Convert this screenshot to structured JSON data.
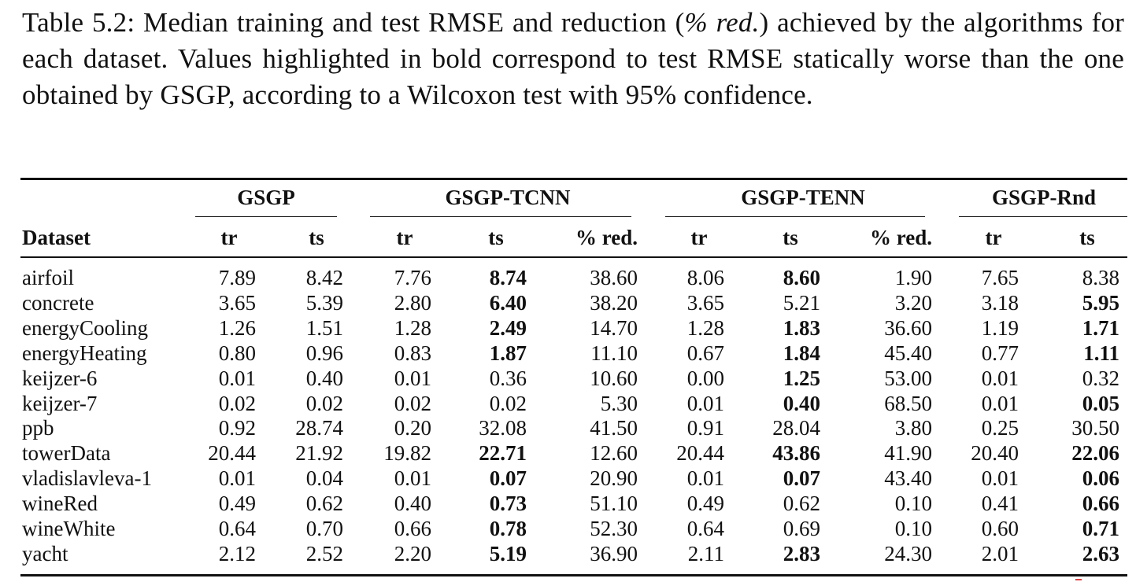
{
  "caption": {
    "label": "Table 5.2:",
    "text_before": " Median training and test RMSE and reduction (",
    "italic": "% red.",
    "text_after": ") achieved by the algorithms for each dataset. Values highlighted in bold correspond to test RMSE statically worse than the one obtained by GSGP, according to a Wilcoxon test with 95% confidence."
  },
  "table": {
    "groups": [
      "GSGP",
      "GSGP-TCNN",
      "GSGP-TENN",
      "GSGP-Rnd"
    ],
    "dataset_header": "Dataset",
    "subheaders": [
      "tr",
      "ts",
      "tr",
      "ts",
      "% red.",
      "tr",
      "ts",
      "% red.",
      "tr",
      "ts"
    ],
    "rows": [
      {
        "dataset": "airfoil",
        "cells": [
          {
            "v": "7.89",
            "b": false
          },
          {
            "v": "8.42",
            "b": false
          },
          {
            "v": "7.76",
            "b": false
          },
          {
            "v": "8.74",
            "b": true
          },
          {
            "v": "38.60",
            "b": false
          },
          {
            "v": "8.06",
            "b": false
          },
          {
            "v": "8.60",
            "b": true
          },
          {
            "v": "1.90",
            "b": false
          },
          {
            "v": "7.65",
            "b": false
          },
          {
            "v": "8.38",
            "b": false
          }
        ]
      },
      {
        "dataset": "concrete",
        "cells": [
          {
            "v": "3.65",
            "b": false
          },
          {
            "v": "5.39",
            "b": false
          },
          {
            "v": "2.80",
            "b": false
          },
          {
            "v": "6.40",
            "b": true
          },
          {
            "v": "38.20",
            "b": false
          },
          {
            "v": "3.65",
            "b": false
          },
          {
            "v": "5.21",
            "b": false
          },
          {
            "v": "3.20",
            "b": false
          },
          {
            "v": "3.18",
            "b": false
          },
          {
            "v": "5.95",
            "b": true
          }
        ]
      },
      {
        "dataset": "energyCooling",
        "cells": [
          {
            "v": "1.26",
            "b": false
          },
          {
            "v": "1.51",
            "b": false
          },
          {
            "v": "1.28",
            "b": false
          },
          {
            "v": "2.49",
            "b": true
          },
          {
            "v": "14.70",
            "b": false
          },
          {
            "v": "1.28",
            "b": false
          },
          {
            "v": "1.83",
            "b": true
          },
          {
            "v": "36.60",
            "b": false
          },
          {
            "v": "1.19",
            "b": false
          },
          {
            "v": "1.71",
            "b": true
          }
        ]
      },
      {
        "dataset": "energyHeating",
        "cells": [
          {
            "v": "0.80",
            "b": false
          },
          {
            "v": "0.96",
            "b": false
          },
          {
            "v": "0.83",
            "b": false
          },
          {
            "v": "1.87",
            "b": true
          },
          {
            "v": "11.10",
            "b": false
          },
          {
            "v": "0.67",
            "b": false
          },
          {
            "v": "1.84",
            "b": true
          },
          {
            "v": "45.40",
            "b": false
          },
          {
            "v": "0.77",
            "b": false
          },
          {
            "v": "1.11",
            "b": true
          }
        ]
      },
      {
        "dataset": "keijzer-6",
        "cells": [
          {
            "v": "0.01",
            "b": false
          },
          {
            "v": "0.40",
            "b": false
          },
          {
            "v": "0.01",
            "b": false
          },
          {
            "v": "0.36",
            "b": false
          },
          {
            "v": "10.60",
            "b": false
          },
          {
            "v": "0.00",
            "b": false
          },
          {
            "v": "1.25",
            "b": true
          },
          {
            "v": "53.00",
            "b": false
          },
          {
            "v": "0.01",
            "b": false
          },
          {
            "v": "0.32",
            "b": false
          }
        ]
      },
      {
        "dataset": "keijzer-7",
        "cells": [
          {
            "v": "0.02",
            "b": false
          },
          {
            "v": "0.02",
            "b": false
          },
          {
            "v": "0.02",
            "b": false
          },
          {
            "v": "0.02",
            "b": false
          },
          {
            "v": "5.30",
            "b": false
          },
          {
            "v": "0.01",
            "b": false
          },
          {
            "v": "0.40",
            "b": true
          },
          {
            "v": "68.50",
            "b": false
          },
          {
            "v": "0.01",
            "b": false
          },
          {
            "v": "0.05",
            "b": true
          }
        ]
      },
      {
        "dataset": "ppb",
        "cells": [
          {
            "v": "0.92",
            "b": false
          },
          {
            "v": "28.74",
            "b": false
          },
          {
            "v": "0.20",
            "b": false
          },
          {
            "v": "32.08",
            "b": false
          },
          {
            "v": "41.50",
            "b": false
          },
          {
            "v": "0.91",
            "b": false
          },
          {
            "v": "28.04",
            "b": false
          },
          {
            "v": "3.80",
            "b": false
          },
          {
            "v": "0.25",
            "b": false
          },
          {
            "v": "30.50",
            "b": false
          }
        ]
      },
      {
        "dataset": "towerData",
        "cells": [
          {
            "v": "20.44",
            "b": false
          },
          {
            "v": "21.92",
            "b": false
          },
          {
            "v": "19.82",
            "b": false
          },
          {
            "v": "22.71",
            "b": true
          },
          {
            "v": "12.60",
            "b": false
          },
          {
            "v": "20.44",
            "b": false
          },
          {
            "v": "43.86",
            "b": true
          },
          {
            "v": "41.90",
            "b": false
          },
          {
            "v": "20.40",
            "b": false
          },
          {
            "v": "22.06",
            "b": true
          }
        ]
      },
      {
        "dataset": "vladislavleva-1",
        "cells": [
          {
            "v": "0.01",
            "b": false
          },
          {
            "v": "0.04",
            "b": false
          },
          {
            "v": "0.01",
            "b": false
          },
          {
            "v": "0.07",
            "b": true
          },
          {
            "v": "20.90",
            "b": false
          },
          {
            "v": "0.01",
            "b": false
          },
          {
            "v": "0.07",
            "b": true
          },
          {
            "v": "43.40",
            "b": false
          },
          {
            "v": "0.01",
            "b": false
          },
          {
            "v": "0.06",
            "b": true
          }
        ]
      },
      {
        "dataset": "wineRed",
        "cells": [
          {
            "v": "0.49",
            "b": false
          },
          {
            "v": "0.62",
            "b": false
          },
          {
            "v": "0.40",
            "b": false
          },
          {
            "v": "0.73",
            "b": true
          },
          {
            "v": "51.10",
            "b": false
          },
          {
            "v": "0.49",
            "b": false
          },
          {
            "v": "0.62",
            "b": false
          },
          {
            "v": "0.10",
            "b": false
          },
          {
            "v": "0.41",
            "b": false
          },
          {
            "v": "0.66",
            "b": true
          }
        ]
      },
      {
        "dataset": "wineWhite",
        "cells": [
          {
            "v": "0.64",
            "b": false
          },
          {
            "v": "0.70",
            "b": false
          },
          {
            "v": "0.66",
            "b": false
          },
          {
            "v": "0.78",
            "b": true
          },
          {
            "v": "52.30",
            "b": false
          },
          {
            "v": "0.64",
            "b": false
          },
          {
            "v": "0.69",
            "b": false
          },
          {
            "v": "0.10",
            "b": false
          },
          {
            "v": "0.60",
            "b": false
          },
          {
            "v": "0.71",
            "b": true
          }
        ]
      },
      {
        "dataset": "yacht",
        "cells": [
          {
            "v": "2.12",
            "b": false
          },
          {
            "v": "2.52",
            "b": false
          },
          {
            "v": "2.20",
            "b": false
          },
          {
            "v": "5.19",
            "b": true
          },
          {
            "v": "36.90",
            "b": false
          },
          {
            "v": "2.11",
            "b": false
          },
          {
            "v": "2.83",
            "b": true
          },
          {
            "v": "24.30",
            "b": false
          },
          {
            "v": "2.01",
            "b": false
          },
          {
            "v": "2.63",
            "b": true
          }
        ]
      }
    ]
  }
}
